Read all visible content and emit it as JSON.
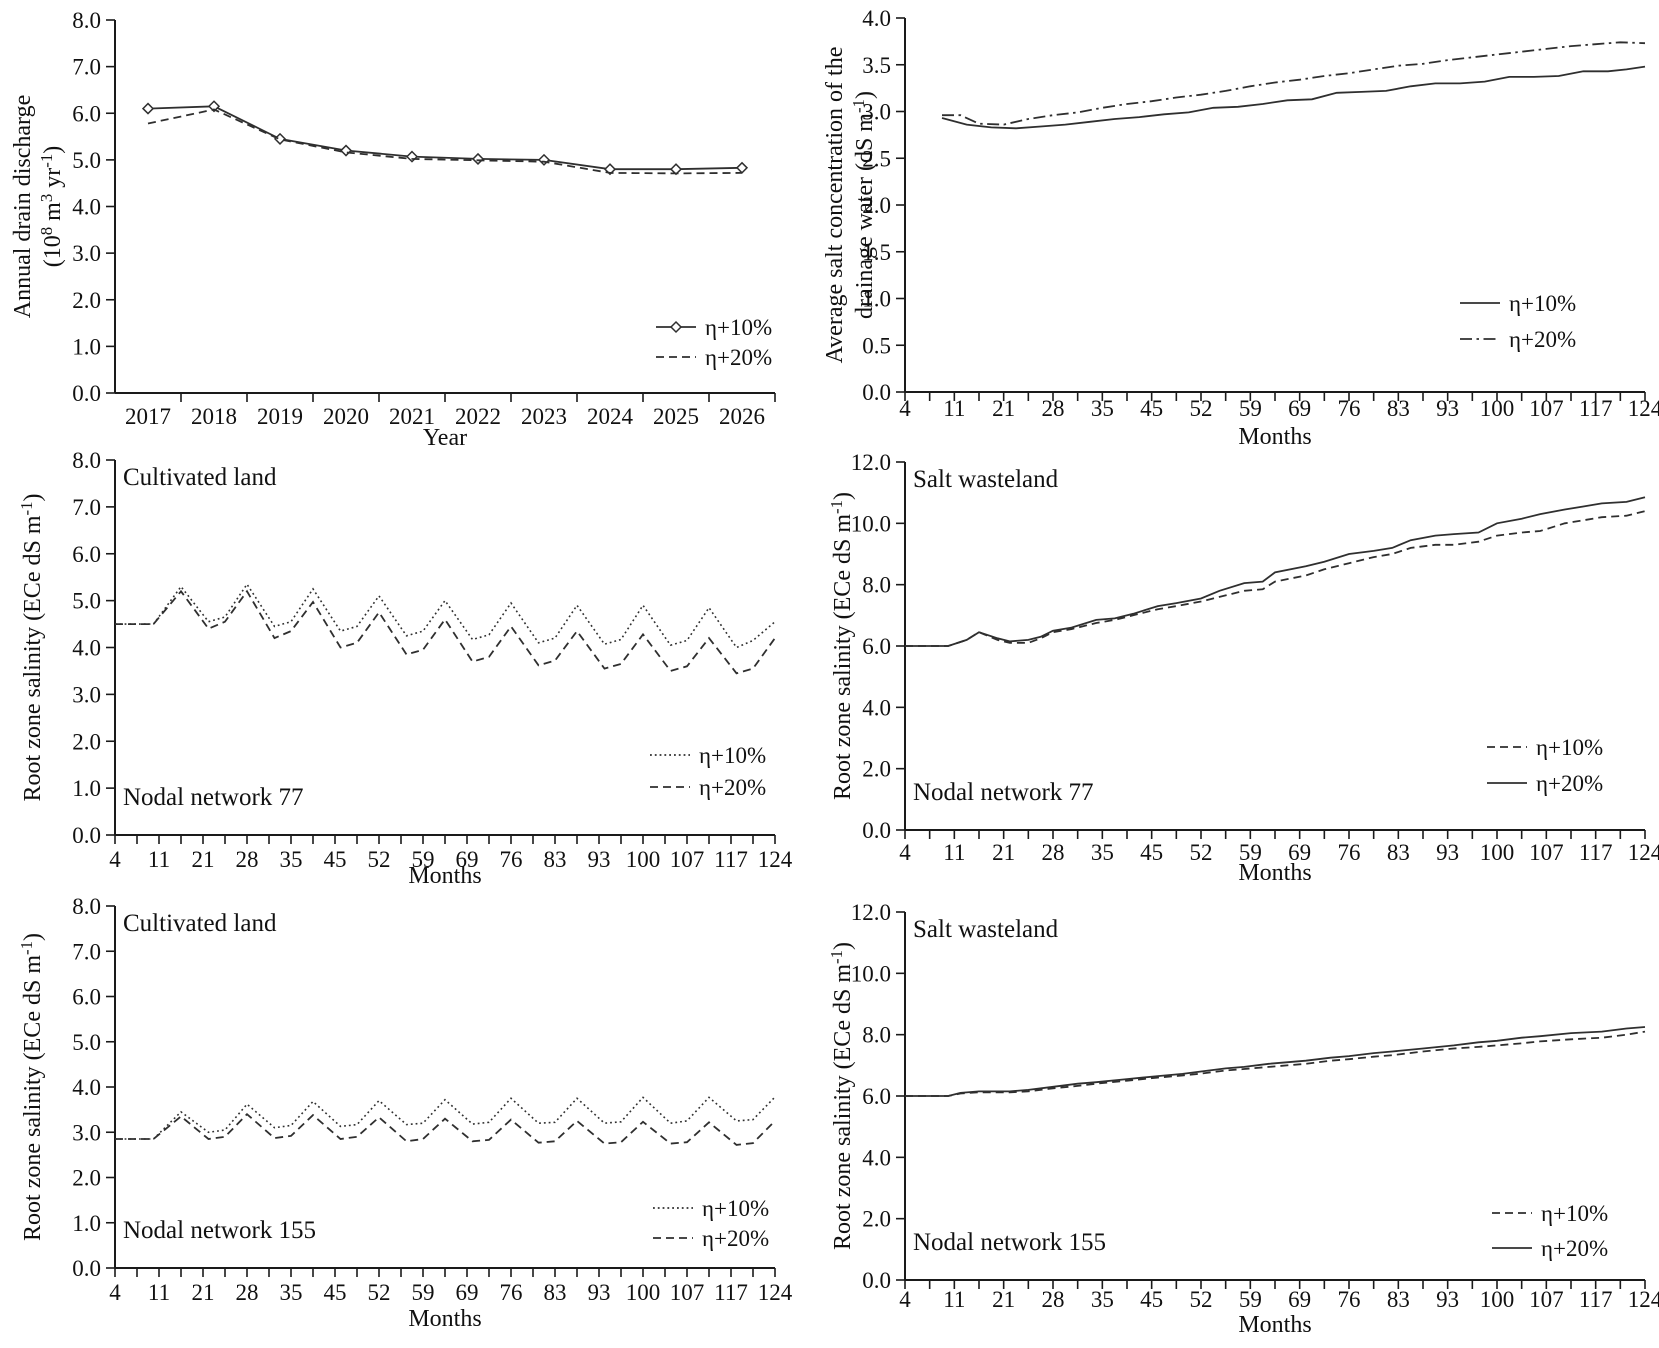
{
  "page": {
    "background": "#ffffff",
    "text_color": "#111111",
    "line_color": "#2f2f2f",
    "axis_color": "#1a1a1a"
  },
  "chart_data": [
    {
      "type": "line",
      "name": "annual-drain-discharge",
      "ylabel_lines": [
        "Annual drain discharge",
        "(10^{8} m^{3} yr^{-1})"
      ],
      "xlabel": "Year",
      "ylim": [
        0,
        8
      ],
      "ystep": 1.0,
      "ydecimals": 1,
      "x_axis": {
        "kind": "categories",
        "labels": [
          "2017",
          "2018",
          "2019",
          "2020",
          "2021",
          "2022",
          "2023",
          "2024",
          "2025",
          "2026"
        ]
      },
      "grid": false,
      "legend_position": "lower-right",
      "annotations": [],
      "series": [
        {
          "label": "η+10%",
          "style": "solid",
          "marker": "diamond",
          "y": [
            6.1,
            6.15,
            5.45,
            5.2,
            5.07,
            5.02,
            5.0,
            4.8,
            4.8,
            4.83
          ]
        },
        {
          "label": "η+20%",
          "style": "dashed",
          "y": [
            5.78,
            6.08,
            5.44,
            5.16,
            5.02,
            4.99,
            4.96,
            4.72,
            4.71,
            4.72
          ]
        }
      ]
    },
    {
      "type": "line",
      "name": "drainage-water-salt-concentration",
      "ylabel_lines": [
        "Average salt concentration of the",
        "drainage water (dS m^{-1})"
      ],
      "xlabel": "Months",
      "ylim": [
        0,
        4
      ],
      "ystep": 0.5,
      "ydecimals": 1,
      "x_axis": {
        "kind": "months",
        "labels": [
          "4",
          "11",
          "21",
          "28",
          "35",
          "45",
          "52",
          "59",
          "69",
          "76",
          "83",
          "93",
          "100",
          "107",
          "117",
          "124"
        ],
        "range": [
          4,
          124
        ]
      },
      "grid": false,
      "legend_position": "lower-right",
      "annotations": [],
      "series": [
        {
          "label": "η+10%",
          "style": "solid",
          "x": [
            10,
            14,
            18,
            22,
            26,
            30,
            34,
            38,
            42,
            46,
            50,
            54,
            58,
            62,
            66,
            70,
            74,
            78,
            82,
            86,
            90,
            94,
            98,
            102,
            106,
            110,
            114,
            118,
            121,
            124
          ],
          "y": [
            2.93,
            2.86,
            2.83,
            2.82,
            2.84,
            2.86,
            2.89,
            2.92,
            2.94,
            2.97,
            2.99,
            3.04,
            3.05,
            3.08,
            3.12,
            3.13,
            3.2,
            3.21,
            3.22,
            3.27,
            3.3,
            3.3,
            3.32,
            3.37,
            3.37,
            3.38,
            3.43,
            3.43,
            3.45,
            3.48
          ]
        },
        {
          "label": "η+20%",
          "style": "dashdot",
          "x": [
            10,
            13,
            16,
            20,
            24,
            28,
            32,
            36,
            40,
            44,
            48,
            52,
            56,
            60,
            64,
            68,
            72,
            76,
            80,
            84,
            88,
            92,
            96,
            100,
            104,
            108,
            112,
            116,
            120,
            124
          ],
          "y": [
            2.96,
            2.96,
            2.87,
            2.86,
            2.92,
            2.96,
            2.99,
            3.04,
            3.08,
            3.11,
            3.15,
            3.18,
            3.22,
            3.27,
            3.31,
            3.34,
            3.38,
            3.41,
            3.45,
            3.49,
            3.51,
            3.55,
            3.58,
            3.61,
            3.64,
            3.67,
            3.7,
            3.72,
            3.74,
            3.73
          ]
        }
      ]
    },
    {
      "type": "line",
      "name": "root-zone-salinity-cultivated-77",
      "ylabel_lines": [
        "Root zone salinity (ECe dS m^{-1})"
      ],
      "xlabel": "Months",
      "ylim": [
        0,
        8
      ],
      "ystep": 1.0,
      "ydecimals": 1,
      "x_axis": {
        "kind": "months",
        "labels": [
          "4",
          "11",
          "21",
          "28",
          "35",
          "45",
          "52",
          "59",
          "69",
          "76",
          "83",
          "93",
          "100",
          "107",
          "117",
          "124"
        ],
        "range": [
          4,
          124
        ]
      },
      "grid": false,
      "legend_position": "lower-right",
      "annotations": [
        {
          "text": "Cultivated land",
          "pos": "top-left"
        },
        {
          "text": "Nodal network 77",
          "pos": "bottom-left"
        }
      ],
      "series": [
        {
          "label": "η+10%",
          "style": "dotted",
          "x": [
            4,
            11,
            16,
            21,
            24,
            28,
            33,
            36,
            40,
            45,
            48,
            52,
            57,
            60,
            64,
            69,
            72,
            76,
            81,
            84,
            88,
            93,
            96,
            100,
            105,
            108,
            112,
            117,
            120,
            124
          ],
          "y": [
            4.5,
            4.5,
            5.3,
            4.55,
            4.65,
            5.35,
            4.45,
            4.55,
            5.25,
            4.35,
            4.45,
            5.1,
            4.25,
            4.35,
            5.0,
            4.17,
            4.27,
            4.95,
            4.1,
            4.2,
            4.9,
            4.07,
            4.17,
            4.9,
            4.05,
            4.15,
            4.85,
            4.0,
            4.15,
            4.55
          ]
        },
        {
          "label": "η+20%",
          "style": "dashed",
          "x": [
            4,
            11,
            16,
            21,
            24,
            28,
            33,
            36,
            40,
            45,
            48,
            52,
            57,
            60,
            64,
            69,
            72,
            76,
            81,
            84,
            88,
            93,
            96,
            100,
            105,
            108,
            112,
            117,
            120,
            124
          ],
          "y": [
            4.5,
            4.5,
            5.2,
            4.4,
            4.55,
            5.2,
            4.2,
            4.35,
            4.97,
            4.0,
            4.1,
            4.75,
            3.85,
            3.95,
            4.6,
            3.7,
            3.8,
            4.45,
            3.62,
            3.72,
            4.35,
            3.55,
            3.65,
            4.28,
            3.5,
            3.6,
            4.2,
            3.45,
            3.55,
            4.2
          ]
        }
      ]
    },
    {
      "type": "line",
      "name": "root-zone-salinity-salt-wasteland-77",
      "ylabel_lines": [
        "Root zone salinity (ECe dS m^{-1})"
      ],
      "xlabel": "Months",
      "ylim": [
        0,
        12
      ],
      "ystep": 2.0,
      "ydecimals": 1,
      "x_axis": {
        "kind": "months",
        "labels": [
          "4",
          "11",
          "21",
          "28",
          "35",
          "45",
          "52",
          "59",
          "69",
          "76",
          "83",
          "93",
          "100",
          "107",
          "117",
          "124"
        ],
        "range": [
          4,
          124
        ]
      },
      "grid": false,
      "legend_position": "lower-right",
      "annotations": [
        {
          "text": "Salt wasteland",
          "pos": "top-left"
        },
        {
          "text": "Nodal network 77",
          "pos": "bottom-left"
        }
      ],
      "series": [
        {
          "label": "η+10%",
          "style": "dashed",
          "x": [
            4,
            11,
            14,
            16,
            19,
            21,
            24,
            26,
            28,
            31,
            35,
            38,
            41,
            45,
            48,
            52,
            55,
            59,
            62,
            64,
            69,
            72,
            76,
            80,
            83,
            86,
            90,
            93,
            97,
            100,
            104,
            107,
            111,
            114,
            117,
            121,
            124
          ],
          "y": [
            6.0,
            6.0,
            6.2,
            6.45,
            6.2,
            6.1,
            6.1,
            6.25,
            6.45,
            6.55,
            6.75,
            6.85,
            7.0,
            7.2,
            7.3,
            7.45,
            7.6,
            7.8,
            7.85,
            8.1,
            8.3,
            8.5,
            8.7,
            8.9,
            9.0,
            9.2,
            9.3,
            9.3,
            9.4,
            9.6,
            9.7,
            9.75,
            10.0,
            10.1,
            10.2,
            10.25,
            10.4
          ]
        },
        {
          "label": "η+20%",
          "style": "solid",
          "x": [
            4,
            11,
            14,
            16,
            19,
            21,
            24,
            26,
            28,
            31,
            35,
            38,
            41,
            45,
            48,
            52,
            55,
            59,
            62,
            64,
            69,
            72,
            76,
            80,
            83,
            86,
            90,
            93,
            97,
            100,
            104,
            107,
            111,
            114,
            117,
            121,
            124
          ],
          "y": [
            6.0,
            6.0,
            6.2,
            6.45,
            6.25,
            6.15,
            6.2,
            6.3,
            6.5,
            6.6,
            6.85,
            6.9,
            7.05,
            7.3,
            7.4,
            7.55,
            7.8,
            8.05,
            8.1,
            8.4,
            8.6,
            8.75,
            9.0,
            9.1,
            9.2,
            9.45,
            9.6,
            9.65,
            9.7,
            10.0,
            10.15,
            10.3,
            10.45,
            10.55,
            10.65,
            10.7,
            10.85
          ]
        }
      ]
    },
    {
      "type": "line",
      "name": "root-zone-salinity-cultivated-155",
      "ylabel_lines": [
        "Root zone salinity (ECe dS m^{-1})"
      ],
      "xlabel": "Months",
      "ylim": [
        0,
        8
      ],
      "ystep": 1.0,
      "ydecimals": 1,
      "x_axis": {
        "kind": "months",
        "labels": [
          "4",
          "11",
          "21",
          "28",
          "35",
          "45",
          "52",
          "59",
          "69",
          "76",
          "83",
          "93",
          "100",
          "107",
          "117",
          "124"
        ],
        "range": [
          4,
          124
        ]
      },
      "grid": false,
      "legend_position": "lower-right",
      "annotations": [
        {
          "text": "Cultivated land",
          "pos": "top-left"
        },
        {
          "text": "Nodal network 155",
          "pos": "bottom-left"
        }
      ],
      "series": [
        {
          "label": "η+10%",
          "style": "dotted",
          "x": [
            4,
            11,
            16,
            21,
            24,
            28,
            33,
            36,
            40,
            45,
            48,
            52,
            57,
            60,
            64,
            69,
            72,
            76,
            81,
            84,
            88,
            93,
            96,
            100,
            105,
            108,
            112,
            117,
            120,
            124
          ],
          "y": [
            2.85,
            2.85,
            3.45,
            3.0,
            3.05,
            3.62,
            3.1,
            3.15,
            3.68,
            3.13,
            3.17,
            3.7,
            3.17,
            3.2,
            3.72,
            3.18,
            3.22,
            3.75,
            3.2,
            3.22,
            3.75,
            3.2,
            3.23,
            3.77,
            3.2,
            3.25,
            3.77,
            3.25,
            3.28,
            3.78
          ]
        },
        {
          "label": "η+20%",
          "style": "dashed",
          "x": [
            4,
            11,
            16,
            21,
            24,
            28,
            33,
            36,
            40,
            45,
            48,
            52,
            57,
            60,
            64,
            69,
            72,
            76,
            81,
            84,
            88,
            93,
            96,
            100,
            105,
            108,
            112,
            117,
            120,
            124
          ],
          "y": [
            2.85,
            2.85,
            3.35,
            2.85,
            2.9,
            3.4,
            2.87,
            2.92,
            3.38,
            2.85,
            2.9,
            3.33,
            2.8,
            2.85,
            3.3,
            2.8,
            2.83,
            3.28,
            2.77,
            2.8,
            3.25,
            2.75,
            2.78,
            3.23,
            2.75,
            2.78,
            3.22,
            2.72,
            2.76,
            3.25
          ]
        }
      ]
    },
    {
      "type": "line",
      "name": "root-zone-salinity-salt-wasteland-155",
      "ylabel_lines": [
        "Root zone salinity (ECe dS m^{-1})"
      ],
      "xlabel": "Months",
      "ylim": [
        0,
        12
      ],
      "ystep": 2.0,
      "ydecimals": 1,
      "x_axis": {
        "kind": "months",
        "labels": [
          "4",
          "11",
          "21",
          "28",
          "35",
          "45",
          "52",
          "59",
          "69",
          "76",
          "83",
          "93",
          "100",
          "107",
          "117",
          "124"
        ],
        "range": [
          4,
          124
        ]
      },
      "grid": false,
      "legend_position": "lower-right",
      "annotations": [
        {
          "text": "Salt wasteland",
          "pos": "top-left"
        },
        {
          "text": "Nodal network 155",
          "pos": "bottom-left"
        }
      ],
      "series": [
        {
          "label": "η+10%",
          "style": "dashed",
          "x": [
            4,
            11,
            13,
            16,
            21,
            24,
            28,
            32,
            35,
            40,
            45,
            49,
            52,
            56,
            59,
            63,
            69,
            73,
            76,
            80,
            83,
            88,
            93,
            97,
            100,
            104,
            107,
            112,
            117,
            121,
            124
          ],
          "y": [
            6.0,
            6.0,
            6.08,
            6.12,
            6.12,
            6.15,
            6.25,
            6.33,
            6.4,
            6.5,
            6.6,
            6.67,
            6.73,
            6.83,
            6.88,
            6.95,
            7.05,
            7.15,
            7.2,
            7.28,
            7.33,
            7.45,
            7.55,
            7.6,
            7.65,
            7.72,
            7.78,
            7.85,
            7.9,
            8.0,
            8.1
          ]
        },
        {
          "label": "η+20%",
          "style": "solid",
          "x": [
            4,
            11,
            13,
            16,
            21,
            24,
            28,
            32,
            35,
            40,
            45,
            49,
            52,
            56,
            59,
            63,
            69,
            73,
            76,
            80,
            83,
            88,
            93,
            97,
            100,
            104,
            107,
            112,
            117,
            121,
            124
          ],
          "y": [
            6.0,
            6.0,
            6.1,
            6.15,
            6.15,
            6.2,
            6.3,
            6.4,
            6.45,
            6.55,
            6.65,
            6.72,
            6.8,
            6.9,
            6.95,
            7.05,
            7.15,
            7.25,
            7.3,
            7.4,
            7.45,
            7.55,
            7.65,
            7.75,
            7.8,
            7.9,
            7.95,
            8.05,
            8.1,
            8.2,
            8.25
          ]
        }
      ]
    }
  ]
}
